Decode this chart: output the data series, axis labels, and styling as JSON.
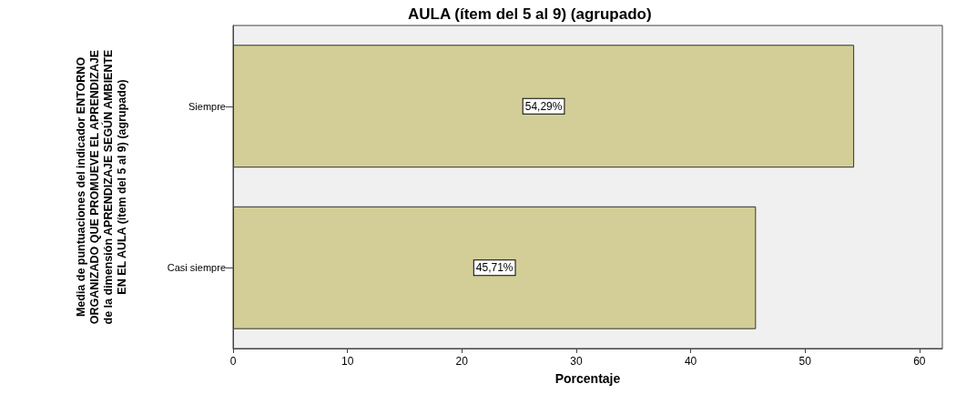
{
  "chart_data": {
    "type": "bar",
    "orientation": "horizontal",
    "title": "AULA (ítem del 5 al 9) (agrupado)",
    "xlabel": "Porcentaje",
    "ylabel": "Media de puntuaciones del indicador ENTORNO\nORGANIZADO QUE PROMUEVE EL APRENDIZAJE\nde la dimensión APRENDIZAJE SEGÚN AMBIENTE\nEN EL AULA (ítem del 5 al 9) (agrupado)",
    "categories": [
      "Siempre",
      "Casi siempre"
    ],
    "values": [
      54.29,
      45.71
    ],
    "value_labels": [
      "54,29%",
      "45,71%"
    ],
    "color": "#d3ce97",
    "xlim": [
      0,
      62
    ],
    "xticks": [
      0,
      10,
      20,
      30,
      40,
      50,
      60
    ],
    "grid": false
  }
}
